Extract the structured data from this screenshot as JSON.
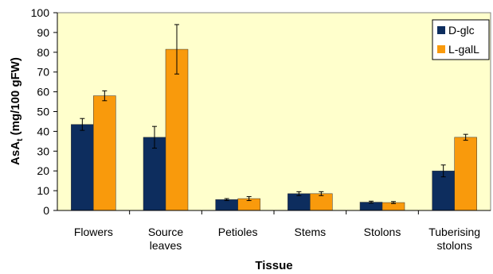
{
  "chart_data": {
    "type": "bar",
    "categories": [
      "Flowers",
      "Source leaves",
      "Petioles",
      "Stems",
      "Stolons",
      "Tuberising stolons"
    ],
    "category_lines": [
      [
        "Flowers"
      ],
      [
        "Source",
        "leaves"
      ],
      [
        "Petioles"
      ],
      [
        "Stems"
      ],
      [
        "Stolons"
      ],
      [
        "Tuberising",
        "stolons"
      ]
    ],
    "series": [
      {
        "name": "D-glc",
        "color": "#0d2d5e",
        "values": [
          43.5,
          37,
          5.5,
          8.5,
          4.2,
          20
        ],
        "errors": [
          3,
          5.5,
          0.5,
          1,
          0.5,
          3
        ]
      },
      {
        "name": "L-galL",
        "color": "#f99a0c",
        "values": [
          58,
          81.5,
          6,
          8.5,
          4,
          37
        ],
        "errors": [
          2.5,
          12.5,
          1,
          1,
          0.5,
          1.5
        ]
      }
    ],
    "xlabel": "Tissue",
    "ylabel_main": "AsA",
    "ylabel_sub": "t",
    "ylabel_rest": " (mg/100 gFW)",
    "ylim": [
      0,
      100
    ],
    "yticks": [
      0,
      10,
      20,
      30,
      40,
      50,
      60,
      70,
      80,
      90,
      100
    ],
    "grid": false,
    "legend_position": "top-right",
    "plot_background": "#ffffcc"
  }
}
